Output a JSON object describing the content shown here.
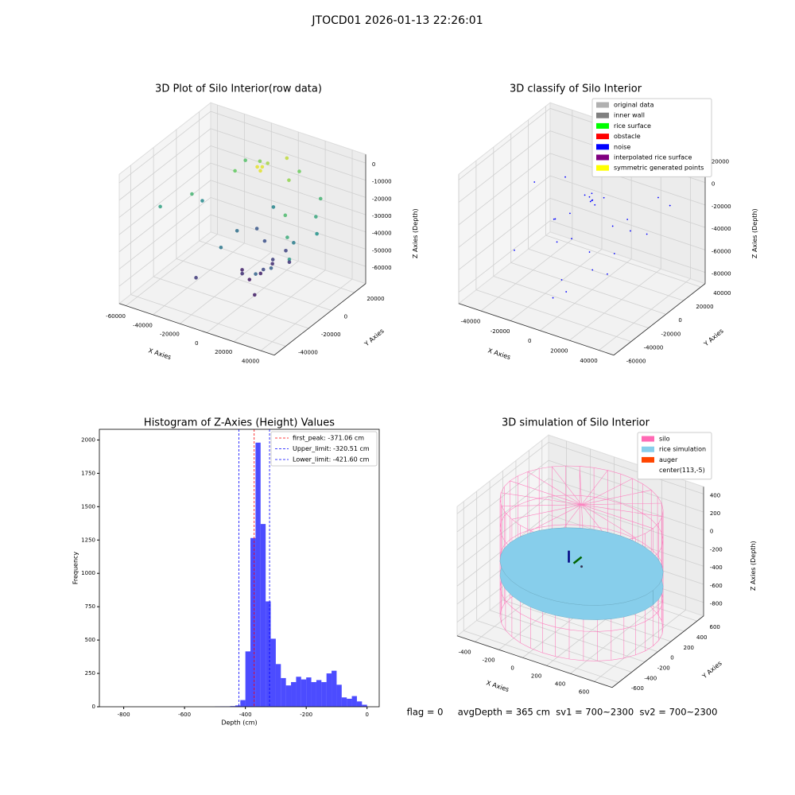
{
  "title": "JTOCD01 2026-01-13 22:26:01",
  "footer": "flag = 0     avgDepth = 365 cm  sv1 = 700~2300  sv2 = 700~2300",
  "chart_data": [
    {
      "type": "scatter3d",
      "title": "3D Plot of Silo Interior(row data)",
      "xlabel": "X Axies",
      "ylabel": "Y Axies",
      "zlabel": "Z Axies (Depth)",
      "xlim": [
        -65000,
        50000
      ],
      "ylim": [
        -50000,
        30000
      ],
      "zlim": [
        -70000,
        5000
      ],
      "xticks": [
        -60000,
        -40000,
        -20000,
        0,
        20000,
        40000
      ],
      "yticks": [
        -40000,
        -20000,
        0,
        20000
      ],
      "zticks": [
        -60000,
        -50000,
        -40000,
        -30000,
        -20000,
        -10000,
        0
      ],
      "colormap": "viridis",
      "x": [
        -60000,
        -45000,
        -30000,
        -20000,
        -10000,
        0,
        10000,
        20000,
        30000,
        40000,
        -50000,
        -35000,
        -15000,
        5000,
        15000,
        25000,
        35000,
        -5000,
        -3000,
        -1000,
        -25000,
        -8000,
        8000,
        2000,
        -12000,
        12000,
        -4000,
        4000,
        -18000,
        18000,
        0,
        -6000,
        6000,
        -20000,
        22000,
        10000,
        -10000,
        30000
      ],
      "y": [
        -20000,
        -10000,
        10000,
        20000,
        15000,
        20000,
        10000,
        -5000,
        -15000,
        -25000,
        5000,
        25000,
        -20000,
        25000,
        -25000,
        20000,
        5000,
        0,
        2000,
        -2000,
        -30000,
        10000,
        -10000,
        5000,
        -5000,
        8000,
        -8000,
        3000,
        15000,
        -15000,
        -3000,
        -12000,
        12000,
        0,
        0,
        -20000,
        20000,
        10000
      ],
      "z": [
        -28000,
        -22000,
        -15000,
        -12000,
        -8000,
        -5000,
        -10000,
        -20000,
        -25000,
        -30000,
        -35000,
        -18000,
        -40000,
        -14000,
        -45000,
        -22000,
        -32000,
        -1000,
        -1500,
        -1200,
        -55000,
        -50000,
        -52000,
        -58000,
        -60000,
        -56000,
        -62000,
        -54000,
        -48000,
        -46000,
        -60000,
        -57000,
        -53000,
        -42000,
        -38000,
        -61000,
        -36000,
        -26000
      ]
    },
    {
      "type": "scatter3d",
      "title": "3D classify of Silo Interior",
      "xlabel": "X Axies",
      "ylabel": "Y Axies",
      "zlabel": "Z Axies (Depth)",
      "xlim": [
        -55000,
        50000
      ],
      "ylim": [
        -60000,
        45000
      ],
      "zlim": [
        -90000,
        25000
      ],
      "xticks": [
        -40000,
        -20000,
        0,
        20000,
        40000
      ],
      "yticks": [
        -60000,
        -40000,
        -20000,
        0,
        20000,
        40000
      ],
      "zticks": [
        -80000,
        -60000,
        -40000,
        -20000,
        0,
        20000
      ],
      "series": [
        {
          "name": "original data",
          "color": "#b0b0b0"
        },
        {
          "name": "inner wall",
          "color": "#808080"
        },
        {
          "name": "rice surface",
          "color": "#00ff00"
        },
        {
          "name": "obstacle",
          "color": "#ff0000"
        },
        {
          "name": "noise",
          "color": "#0000ff",
          "x": [
            -45000,
            -30000,
            -20000,
            -10000,
            0,
            10000,
            20000,
            30000,
            40000,
            -5000,
            -2000,
            2000,
            5000,
            -15000,
            15000,
            -25000,
            25000,
            0,
            -8000,
            8000,
            -12000,
            12000,
            -3000,
            3000,
            -35000,
            35000,
            0,
            -18000,
            18000,
            6000
          ],
          "y": [
            10000,
            20000,
            -10000,
            15000,
            30000,
            -20000,
            10000,
            25000,
            -5000,
            0,
            3000,
            -3000,
            5000,
            -15000,
            15000,
            0,
            -25000,
            -35000,
            -10000,
            10000,
            20000,
            -20000,
            2000,
            -2000,
            -30000,
            30000,
            -45000,
            5000,
            -5000,
            -40000
          ],
          "z": [
            -20000,
            -15000,
            -30000,
            -25000,
            -5000,
            -40000,
            -35000,
            -10000,
            -20000,
            -8000,
            -7000,
            -7500,
            -9000,
            -45000,
            -30000,
            -38000,
            -50000,
            -60000,
            -42000,
            -36000,
            -28000,
            -55000,
            -10000,
            -12000,
            -52000,
            -18000,
            -70000,
            -33000,
            -47000,
            -65000
          ]
        },
        {
          "name": "interpolated rice surface",
          "color": "#800080"
        },
        {
          "name": "symmetric generated points",
          "color": "#ffff00"
        }
      ]
    },
    {
      "type": "histogram",
      "title": "Histogram of Z-Axies (Height) Values",
      "xlabel": "Depth (cm)",
      "ylabel": "Frequency",
      "color": "#0000ff",
      "xlim": [
        -880,
        40
      ],
      "ylim": [
        0,
        2080
      ],
      "xticks": [
        -800,
        -600,
        -400,
        -200,
        0
      ],
      "yticks": [
        0,
        250,
        500,
        750,
        1000,
        1250,
        1500,
        1750,
        2000
      ],
      "bins": [
        -500,
        -483.33,
        -466.67,
        -450,
        -433.33,
        -416.67,
        -400,
        -383.33,
        -366.67,
        -350,
        -333.33,
        -316.67,
        -300,
        -283.33,
        -266.67,
        -250,
        -233.33,
        -216.67,
        -200,
        -183.33,
        -166.67,
        -150,
        -133.33,
        -116.67,
        -100,
        -83.33,
        -66.67,
        -50,
        -33.33,
        -16.67,
        0
      ],
      "values": [
        2,
        3,
        3,
        5,
        10,
        50,
        415,
        1265,
        1980,
        1370,
        790,
        510,
        320,
        215,
        160,
        185,
        225,
        205,
        220,
        185,
        200,
        185,
        250,
        270,
        165,
        70,
        60,
        80,
        40,
        15
      ],
      "vlines": [
        {
          "name": "first_peak: -371.06 cm",
          "value": -371.06,
          "color": "#ff0000"
        },
        {
          "name": "Upper_limit: -320.51 cm",
          "value": -320.51,
          "color": "#0000ff"
        },
        {
          "name": "Lower_limit: -421.60 cm",
          "value": -421.6,
          "color": "#0000ff"
        }
      ]
    },
    {
      "type": "silo3d",
      "title": "3D simulation of Silo Interior",
      "xlabel": "X Axies",
      "ylabel": "Y Axies",
      "zlabel": "Z Axies (Depth)",
      "xlim": [
        -550,
        750
      ],
      "ylim": [
        -700,
        700
      ],
      "zlim": [
        -950,
        480
      ],
      "xticks": [
        -400,
        -200,
        0,
        200,
        400,
        600
      ],
      "yticks": [
        -600,
        -400,
        -200,
        0,
        200,
        400,
        600
      ],
      "zticks": [
        -800,
        -600,
        -400,
        -200,
        0,
        200,
        400
      ],
      "series": [
        {
          "name": "silo",
          "color": "#ff69b4"
        },
        {
          "name": "rice simulation",
          "color": "#87ceeb"
        },
        {
          "name": "auger",
          "color": "#ff4500"
        },
        {
          "name": "center(113,-5)",
          "color": "#ffffff"
        }
      ],
      "center": [
        113,
        -5
      ],
      "radius": 600,
      "bottom": -900,
      "top": 400,
      "rice_level": -365
    }
  ]
}
